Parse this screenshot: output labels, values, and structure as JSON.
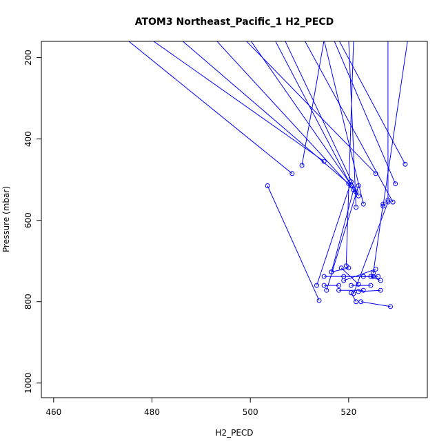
{
  "chart_data": {
    "type": "line",
    "title": "ATOM3 Northeast_Pacific_1 H2_PECD",
    "xlabel": "H2_PECD",
    "ylabel": "Pressure (mbar)",
    "xlim": [
      457.5,
      536
    ],
    "ylim": [
      1036,
      160
    ],
    "y_reversed": true,
    "x_ticks": [
      460,
      480,
      500,
      520
    ],
    "y_ticks": [
      200,
      400,
      600,
      800,
      1000
    ],
    "grid": false,
    "series_color": "#0000ff",
    "marker": "open-circle",
    "series": [
      {
        "points": [
          [
            475,
            157
          ],
          [
            508.5,
            485
          ]
        ]
      },
      {
        "points": [
          [
            480,
            157
          ],
          [
            515,
            455
          ]
        ]
      },
      {
        "points": [
          [
            486,
            157
          ],
          [
            520,
            510
          ]
        ]
      },
      {
        "points": [
          [
            493,
            157
          ],
          [
            521,
            525
          ]
        ]
      },
      {
        "points": [
          [
            499,
            157
          ],
          [
            525.5,
            485
          ]
        ]
      },
      {
        "points": [
          [
            505,
            157
          ],
          [
            520.5,
            515
          ]
        ]
      },
      {
        "points": [
          [
            515,
            157
          ],
          [
            510.5,
            465
          ]
        ]
      },
      {
        "points": [
          [
            500,
            157
          ],
          [
            521.5,
            530
          ]
        ]
      },
      {
        "points": [
          [
            507,
            157
          ],
          [
            522,
            540
          ]
        ]
      },
      {
        "points": [
          [
            511,
            157
          ],
          [
            529,
            555
          ]
        ]
      },
      {
        "points": [
          [
            517,
            157
          ],
          [
            529.5,
            510
          ]
        ]
      },
      {
        "points": [
          [
            518,
            157
          ],
          [
            531.5,
            462
          ]
        ]
      },
      {
        "points": [
          [
            528,
            157
          ],
          [
            528,
            550
          ]
        ]
      },
      {
        "points": [
          [
            532,
            157
          ],
          [
            527,
            565
          ]
        ]
      },
      {
        "points": [
          [
            520,
            157
          ],
          [
            521.5,
            568
          ]
        ]
      },
      {
        "points": [
          [
            521,
            157
          ],
          [
            519.5,
            712
          ]
        ]
      },
      {
        "points": [
          [
            515,
            157
          ],
          [
            523,
            560
          ]
        ]
      },
      {
        "points": [
          [
            503.5,
            515
          ],
          [
            514,
            797
          ]
        ]
      },
      {
        "points": [
          [
            516.5,
            727
          ],
          [
            521,
            525
          ]
        ]
      },
      {
        "points": [
          [
            513.5,
            760
          ],
          [
            520.5,
            505
          ]
        ]
      },
      {
        "points": [
          [
            515,
            738
          ],
          [
            525,
            738
          ]
        ]
      },
      {
        "points": [
          [
            515.5,
            772
          ],
          [
            522,
            515
          ]
        ]
      },
      {
        "points": [
          [
            518,
            772
          ],
          [
            523,
            772
          ]
        ]
      },
      {
        "points": [
          [
            518.5,
            717
          ],
          [
            522,
            757
          ]
        ]
      },
      {
        "points": [
          [
            519,
            748
          ],
          [
            525.5,
            720
          ]
        ]
      },
      {
        "points": [
          [
            519,
            738
          ],
          [
            526,
            738
          ]
        ]
      },
      {
        "points": [
          [
            520.5,
            778
          ],
          [
            521.5,
            800
          ]
        ]
      },
      {
        "points": [
          [
            520.5,
            760
          ],
          [
            524.5,
            760
          ]
        ]
      },
      {
        "points": [
          [
            521,
            780
          ],
          [
            528,
            555
          ]
        ]
      },
      {
        "points": [
          [
            522.5,
            800
          ],
          [
            528.5,
            812
          ]
        ]
      },
      {
        "points": [
          [
            523,
            738
          ],
          [
            525,
            738
          ]
        ]
      },
      {
        "points": [
          [
            524.5,
            738
          ],
          [
            526.5,
            748
          ]
        ]
      },
      {
        "points": [
          [
            525,
            730
          ],
          [
            527,
            560
          ]
        ]
      },
      {
        "points": [
          [
            522,
            775
          ],
          [
            526.5,
            772
          ]
        ]
      },
      {
        "points": [
          [
            516.5,
            727
          ],
          [
            520,
            717
          ]
        ]
      },
      {
        "points": [
          [
            515,
            760
          ],
          [
            518,
            760
          ]
        ]
      }
    ]
  }
}
